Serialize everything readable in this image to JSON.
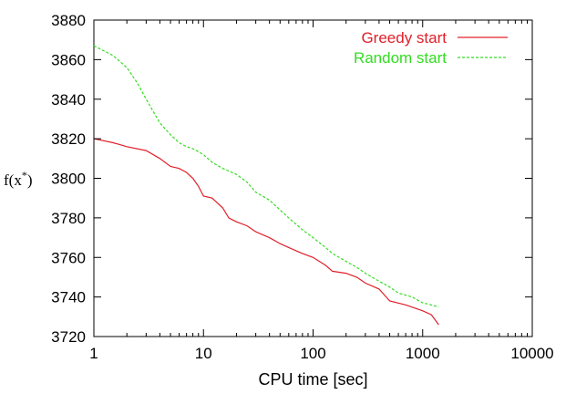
{
  "chart_data": {
    "type": "line",
    "xlabel": "CPU time [sec]",
    "ylabel": "f(x*)",
    "xscale": "log",
    "xlim": [
      1,
      10000
    ],
    "ylim": [
      3720,
      3880
    ],
    "xticks": [
      1,
      10,
      100,
      1000,
      10000
    ],
    "xtick_labels": [
      "1",
      "10",
      "100",
      "1000",
      "10000"
    ],
    "yticks": [
      3720,
      3740,
      3760,
      3780,
      3800,
      3820,
      3840,
      3860,
      3880
    ],
    "ytick_labels": [
      "3720",
      "3740",
      "3760",
      "3780",
      "3800",
      "3820",
      "3840",
      "3860",
      "3880"
    ],
    "legend_position": "top-right",
    "grid": false,
    "series": [
      {
        "name": "Greedy start",
        "color": "#e0202a",
        "dash": "solid",
        "x": [
          1,
          1.5,
          2,
          3,
          4,
          5,
          6,
          7,
          8,
          9,
          10,
          12,
          15,
          17,
          20,
          25,
          30,
          40,
          50,
          60,
          80,
          100,
          130,
          150,
          200,
          250,
          300,
          400,
          500,
          700,
          1000,
          1200,
          1400
        ],
        "y": [
          3820,
          3818,
          3816,
          3814,
          3810,
          3806,
          3805,
          3803,
          3800,
          3796,
          3791,
          3790,
          3785,
          3780,
          3778,
          3776,
          3773,
          3770,
          3767,
          3765,
          3762,
          3760,
          3756,
          3753,
          3752,
          3750,
          3747,
          3744,
          3738,
          3736,
          3733,
          3731,
          3726
        ]
      },
      {
        "name": "Random start",
        "color": "#33dd22",
        "dash": "dashed",
        "x": [
          1,
          1.5,
          2,
          2.5,
          3,
          4,
          5,
          6,
          7,
          8,
          10,
          12,
          15,
          20,
          25,
          30,
          40,
          50,
          60,
          80,
          100,
          130,
          150,
          200,
          250,
          300,
          400,
          500,
          600,
          800,
          1000,
          1200,
          1400
        ],
        "y": [
          3867,
          3862,
          3856,
          3848,
          3840,
          3828,
          3822,
          3818,
          3816,
          3815,
          3812,
          3808,
          3805,
          3802,
          3798,
          3793,
          3789,
          3784,
          3780,
          3774,
          3770,
          3765,
          3762,
          3758,
          3755,
          3752,
          3748,
          3745,
          3742,
          3740,
          3737,
          3736,
          3735
        ]
      }
    ]
  }
}
